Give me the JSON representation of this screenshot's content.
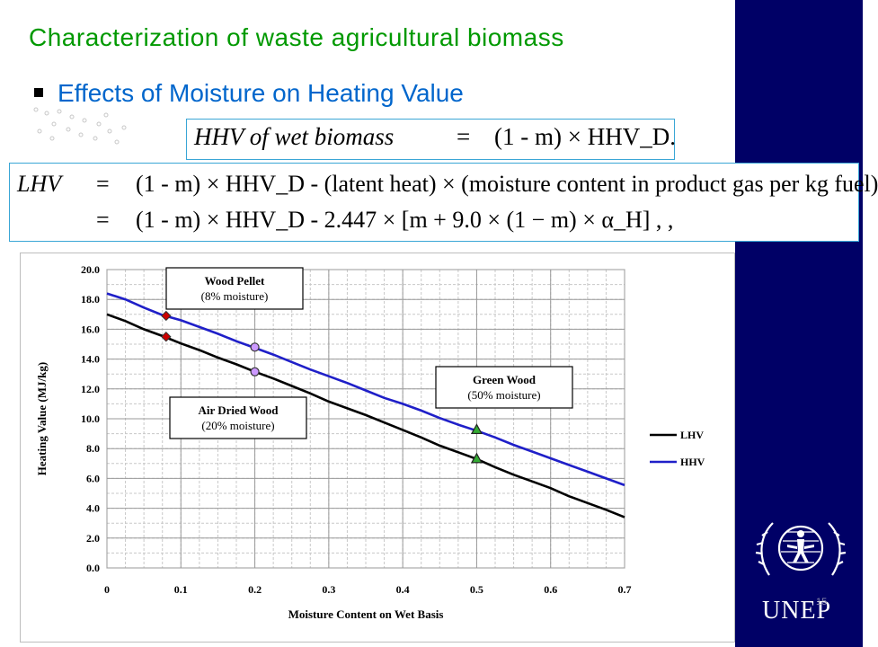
{
  "slide": {
    "title": "Characterization of waste agricultural biomass",
    "subtitle": "Effects of Moisture on Heating Value",
    "page_number": "15",
    "logo_text": "UNEP",
    "colors": {
      "sidebar": "#000066",
      "title": "#009900",
      "subtitle": "#0066cc"
    }
  },
  "equations": {
    "eq1": {
      "lhs": "HHV of wet biomass",
      "eq": "=",
      "rhs": "(1 - m) × HHV_D."
    },
    "eq2_line1": {
      "lhs": "LHV",
      "eq": "=",
      "rhs": "(1 - m) × HHV_D - (latent heat) × (moisture content in product gas per kg fuel)"
    },
    "eq2_line2": {
      "eq": "=",
      "rhs": "(1 - m) × HHV_D - 2.447 × [m + 9.0 × (1 − m) × α_H] , ,"
    }
  },
  "chart_data": {
    "type": "line",
    "xlabel": "Moisture Content on Wet Basis",
    "ylabel": "Heating Value (MJ/kg)",
    "xlim": [
      0,
      0.7
    ],
    "ylim": [
      0,
      20
    ],
    "x_ticks": [
      "0",
      "0.1",
      "0.2",
      "0.3",
      "0.4",
      "0.5",
      "0.6",
      "0.7"
    ],
    "y_ticks": [
      "0.0",
      "2.0",
      "4.0",
      "6.0",
      "8.0",
      "10.0",
      "12.0",
      "14.0",
      "16.0",
      "18.0",
      "20.0"
    ],
    "grid": true,
    "legend_position": "right",
    "series": [
      {
        "name": "LHV",
        "color": "#000000",
        "x": [
          0,
          0.025,
          0.05,
          0.075,
          0.1,
          0.125,
          0.15,
          0.175,
          0.2,
          0.225,
          0.25,
          0.275,
          0.3,
          0.325,
          0.35,
          0.375,
          0.4,
          0.425,
          0.45,
          0.475,
          0.5,
          0.525,
          0.55,
          0.575,
          0.6,
          0.625,
          0.65,
          0.675,
          0.7
        ],
        "y": [
          17.0,
          16.55,
          16.0,
          15.55,
          15.05,
          14.6,
          14.1,
          13.65,
          13.15,
          12.7,
          12.2,
          11.7,
          11.15,
          10.7,
          10.25,
          9.75,
          9.25,
          8.75,
          8.2,
          7.75,
          7.3,
          6.75,
          6.25,
          5.8,
          5.35,
          4.8,
          4.35,
          3.9,
          3.4
        ]
      },
      {
        "name": "HHV",
        "color": "#1f1fc8",
        "x": [
          0,
          0.025,
          0.05,
          0.075,
          0.1,
          0.125,
          0.15,
          0.175,
          0.2,
          0.225,
          0.25,
          0.275,
          0.3,
          0.325,
          0.35,
          0.375,
          0.4,
          0.425,
          0.45,
          0.475,
          0.5,
          0.525,
          0.55,
          0.575,
          0.6,
          0.625,
          0.65,
          0.675,
          0.7
        ],
        "y": [
          18.4,
          18.0,
          17.45,
          16.95,
          16.6,
          16.15,
          15.7,
          15.2,
          14.75,
          14.3,
          13.8,
          13.3,
          12.85,
          12.4,
          11.9,
          11.4,
          11.0,
          10.55,
          10.05,
          9.6,
          9.2,
          8.75,
          8.25,
          7.8,
          7.35,
          6.9,
          6.45,
          6.0,
          5.55
        ]
      }
    ],
    "markers": [
      {
        "x": 0.08,
        "y": 16.9,
        "shape": "diamond",
        "color": "#cc0000"
      },
      {
        "x": 0.08,
        "y": 15.5,
        "shape": "diamond",
        "color": "#cc0000"
      },
      {
        "x": 0.2,
        "y": 14.8,
        "shape": "circle",
        "color": "#cc99ff"
      },
      {
        "x": 0.2,
        "y": 13.15,
        "shape": "circle",
        "color": "#cc99ff"
      },
      {
        "x": 0.5,
        "y": 9.25,
        "shape": "triangle",
        "color": "#33aa33"
      },
      {
        "x": 0.5,
        "y": 7.3,
        "shape": "triangle",
        "color": "#33aa33"
      }
    ],
    "annotations": [
      {
        "line1": "Wood Pellet",
        "line2": "(8% moisture)"
      },
      {
        "line1": "Air Dried Wood",
        "line2": "(20% moisture)"
      },
      {
        "line1": "Green Wood",
        "line2": "(50% moisture)"
      }
    ]
  }
}
